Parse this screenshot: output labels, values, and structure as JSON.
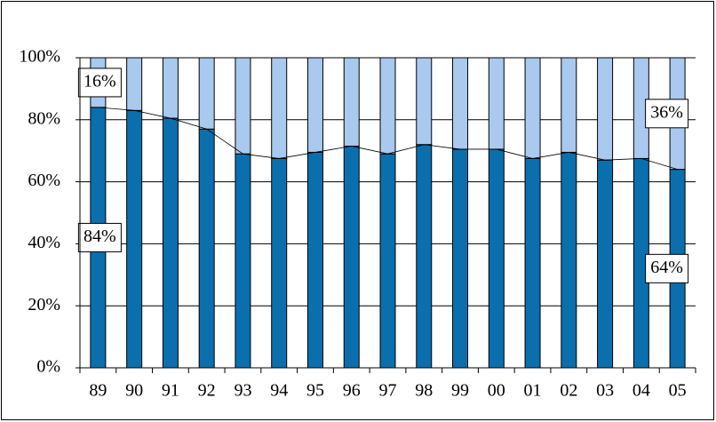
{
  "chart_data": {
    "type": "stacked_bar_100",
    "categories": [
      "89",
      "90",
      "91",
      "92",
      "93",
      "94",
      "95",
      "96",
      "97",
      "98",
      "99",
      "00",
      "01",
      "02",
      "03",
      "04",
      "05"
    ],
    "series": [
      {
        "color": "#0b6fae",
        "values": [
          84,
          83,
          80.5,
          77,
          69,
          67.5,
          69.5,
          71.5,
          69,
          72,
          70.5,
          70.5,
          67.5,
          69.5,
          67,
          67.5,
          64
        ],
        "value_labels": [
          "84%",
          null,
          null,
          null,
          null,
          null,
          null,
          null,
          null,
          null,
          null,
          null,
          null,
          null,
          null,
          null,
          "64%"
        ]
      },
      {
        "color": "#a9c9ee",
        "values": [
          16,
          17,
          19.5,
          23,
          31,
          32.5,
          30.5,
          28.5,
          31,
          28,
          29.5,
          29.5,
          32.5,
          30.5,
          33,
          32.5,
          36
        ],
        "value_labels": [
          "16%",
          null,
          null,
          null,
          null,
          null,
          null,
          null,
          null,
          null,
          null,
          null,
          null,
          null,
          null,
          null,
          "36%"
        ]
      }
    ],
    "ylim": [
      0,
      100
    ],
    "yticks": [
      {
        "value": 0,
        "label": "0%"
      },
      {
        "value": 20,
        "label": "20%"
      },
      {
        "value": 40,
        "label": "40%"
      },
      {
        "value": 60,
        "label": "60%"
      },
      {
        "value": 80,
        "label": "80%"
      },
      {
        "value": 100,
        "label": "100%"
      }
    ],
    "grid": true,
    "series_lines": true
  }
}
